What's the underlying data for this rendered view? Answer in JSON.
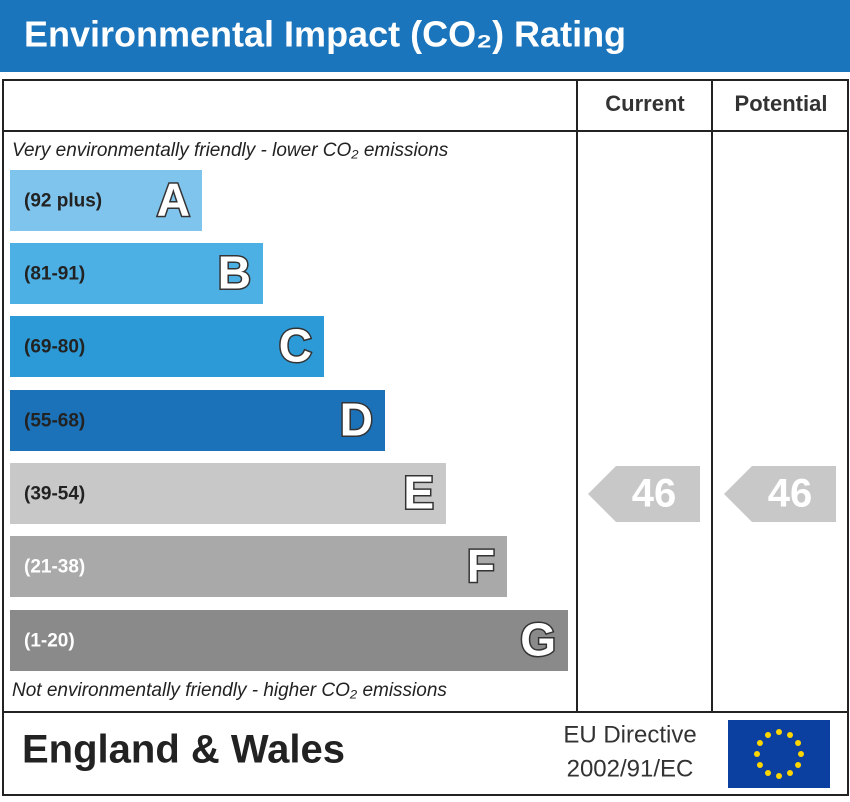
{
  "header": {
    "title": "Environmental Impact (CO₂) Rating"
  },
  "columns": {
    "current": "Current",
    "potential": "Potential"
  },
  "top_note": "Very environmentally friendly - lower CO₂ emissions",
  "bottom_note": "Not environmentally friendly - higher CO₂ emissions",
  "bands": [
    {
      "range": "(92 plus)",
      "letter": "A",
      "color": "#7fc4ec"
    },
    {
      "range": "(81-91)",
      "letter": "B",
      "color": "#4cb0e4"
    },
    {
      "range": "(69-80)",
      "letter": "C",
      "color": "#2b9ad6"
    },
    {
      "range": "(55-68)",
      "letter": "D",
      "color": "#1c72b8"
    },
    {
      "range": "(39-54)",
      "letter": "E",
      "color": "#c8c8c8"
    },
    {
      "range": "(21-38)",
      "letter": "F",
      "color": "#a9a9a9"
    },
    {
      "range": "(1-20)",
      "letter": "G",
      "color": "#8a8a8a"
    }
  ],
  "current": 46,
  "potential": 46,
  "footer": {
    "region": "England & Wales",
    "directive_line1": "EU Directive",
    "directive_line2": "2002/91/EC"
  }
}
